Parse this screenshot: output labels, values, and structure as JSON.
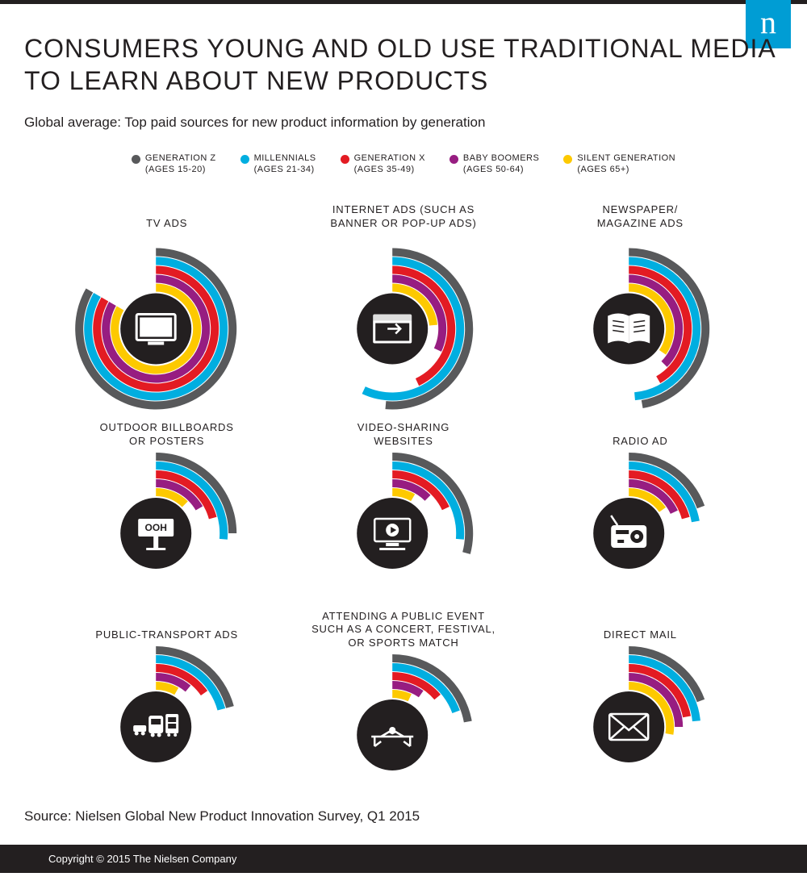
{
  "colors": {
    "genz": "#58595b",
    "mill": "#00aee0",
    "genx": "#e31b23",
    "boom": "#971d81",
    "silent": "#fdc900",
    "iconbg": "#231f20",
    "iconfg": "#ffffff"
  },
  "title": "CONSUMERS YOUNG AND OLD USE TRADITIONAL MEDIA TO LEARN ABOUT NEW PRODUCTS",
  "subtitle": "Global average: Top paid sources for new product information by generation",
  "legend": [
    {
      "key": "genz",
      "label": "GENERATION Z",
      "sub": "(AGES 15-20)"
    },
    {
      "key": "mill",
      "label": "MILLENNIALS",
      "sub": "(AGES 21-34)"
    },
    {
      "key": "genx",
      "label": "GENERATION X",
      "sub": "(AGES 35-49)"
    },
    {
      "key": "boom",
      "label": "BABY BOOMERS",
      "sub": "(AGES 50-64)"
    },
    {
      "key": "silent",
      "label": "SILENT GENERATION",
      "sub": "(AGES 65+)"
    }
  ],
  "arc_geom": {
    "start_deg": 0,
    "ring_width": 10,
    "ring_gap": 1,
    "center_r": 44
  },
  "cells": [
    {
      "label": "TV ADS",
      "icon": "tv",
      "size": "big",
      "series": {
        "genz": 300,
        "mill": 300,
        "genx": 300,
        "boom": 300,
        "silent": 300
      }
    },
    {
      "label": "INTERNET ADS (SUCH AS\nBANNER OR POP-UP ADS)",
      "icon": "browser",
      "size": "big",
      "series": {
        "genz": 185,
        "mill": 205,
        "genx": 155,
        "boom": 115,
        "silent": 85
      }
    },
    {
      "label": "NEWSPAPER/\nMAGAZINE ADS",
      "icon": "book",
      "size": "big",
      "series": {
        "genz": 170,
        "mill": 175,
        "genx": 150,
        "boom": 135,
        "silent": 125
      }
    },
    {
      "label": "OUTDOOR BILLBOARDS\nOR POSTERS",
      "icon": "billboard-ooh",
      "size": "small",
      "series": {
        "genz": 90,
        "mill": 95,
        "genx": 75,
        "boom": 60,
        "silent": 45
      }
    },
    {
      "label": "VIDEO-SHARING\nWEBSITES",
      "icon": "video",
      "size": "small",
      "series": {
        "genz": 105,
        "mill": 95,
        "genx": 65,
        "boom": 45,
        "silent": 30
      }
    },
    {
      "label": "RADIO AD",
      "icon": "radio",
      "size": "small",
      "series": {
        "genz": 70,
        "mill": 80,
        "genx": 75,
        "boom": 65,
        "silent": 55
      }
    },
    {
      "label": "PUBLIC-TRANSPORT ADS",
      "icon": "transport",
      "size": "small",
      "series": {
        "genz": 75,
        "mill": 75,
        "genx": 55,
        "boom": 40,
        "silent": 30
      }
    },
    {
      "label": "ATTENDING A PUBLIC EVENT\nSUCH AS A CONCERT, FESTIVAL,\nOR SPORTS MATCH",
      "icon": "event",
      "size": "small",
      "series": {
        "genz": 80,
        "mill": 70,
        "genx": 50,
        "boom": 35,
        "silent": 25
      }
    },
    {
      "label": "DIRECT MAIL",
      "icon": "mail",
      "size": "small",
      "series": {
        "genz": 70,
        "mill": 85,
        "genx": 80,
        "boom": 90,
        "silent": 100
      }
    }
  ],
  "source": "Source: Nielsen Global New Product Innovation Survey, Q1 2015",
  "copyright": "Copyright © 2015 The Nielsen Company",
  "logo_letter": "n"
}
